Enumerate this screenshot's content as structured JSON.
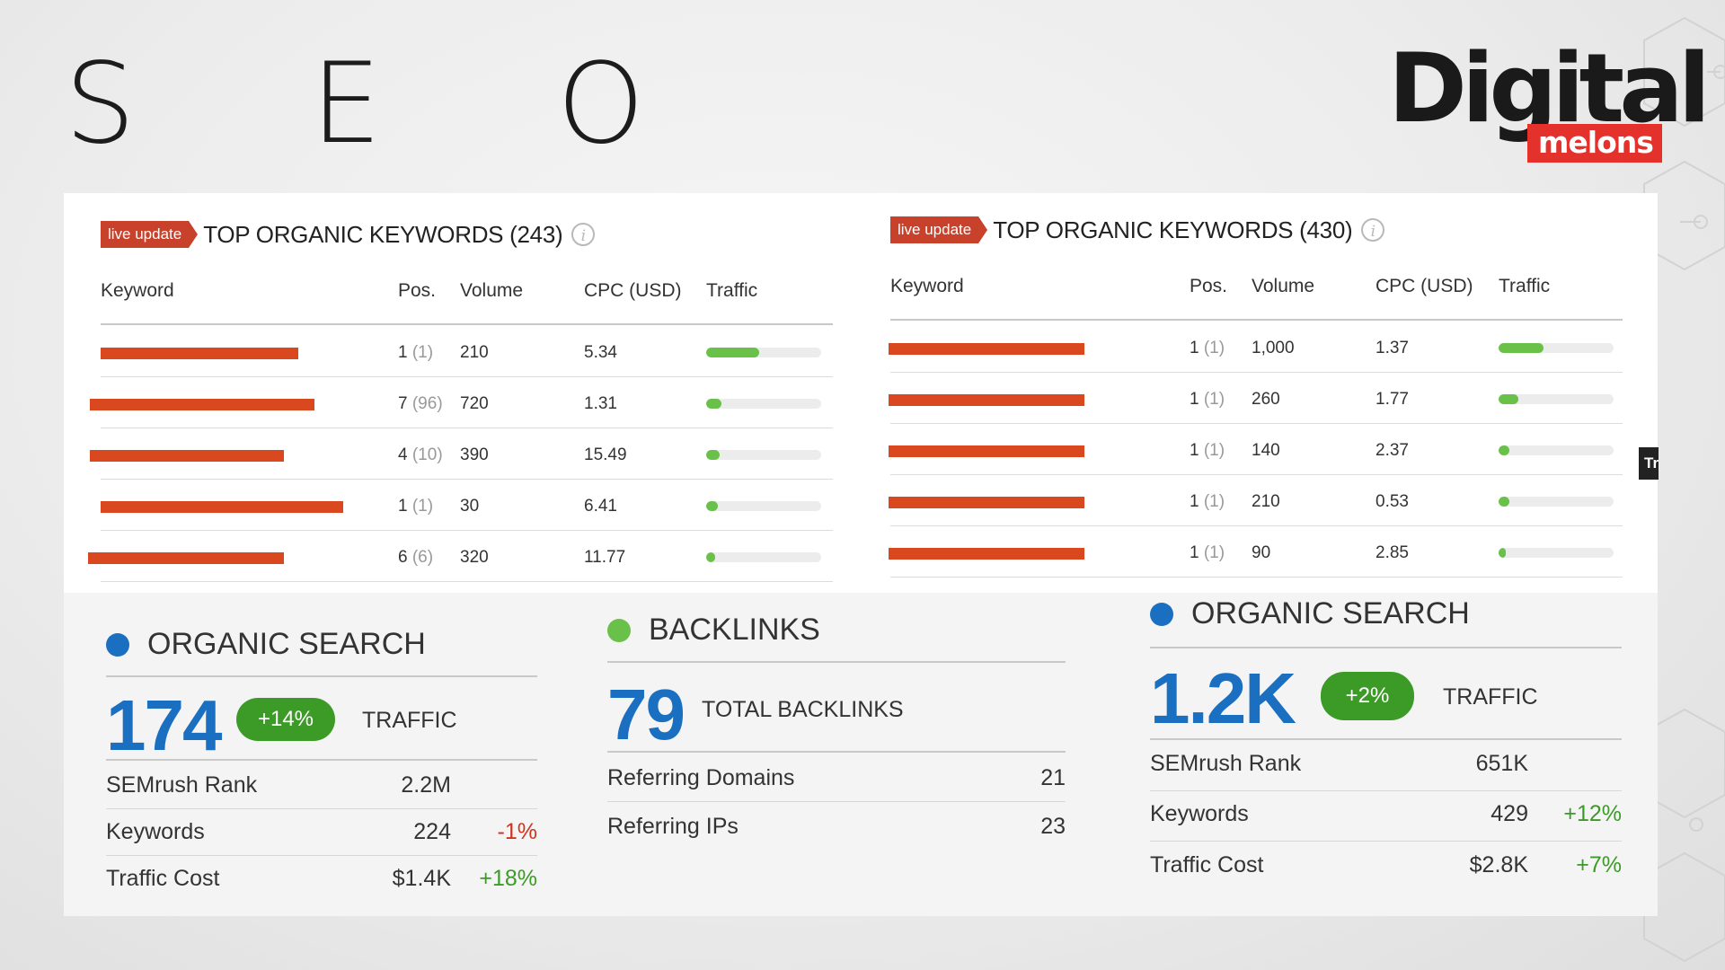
{
  "page_title": "S E O",
  "logo": {
    "main": "Digital",
    "sub": "melons"
  },
  "left_keywords": {
    "badge": "live update",
    "title": "TOP ORGANIC KEYWORDS (243)",
    "info_icon": "info-icon",
    "columns": {
      "keyword": "Keyword",
      "pos": "Pos.",
      "volume": "Volume",
      "cpc": "CPC (USD)",
      "traffic": "Traffic"
    },
    "rows": [
      {
        "pos": "1",
        "prev": "(1)",
        "volume": "210",
        "cpc": "5.34",
        "traffic_share": 0.46
      },
      {
        "pos": "7",
        "prev": "(96)",
        "volume": "720",
        "cpc": "1.31",
        "traffic_share": 0.13
      },
      {
        "pos": "4",
        "prev": "(10)",
        "volume": "390",
        "cpc": "15.49",
        "traffic_share": 0.12
      },
      {
        "pos": "1",
        "prev": "(1)",
        "volume": "30",
        "cpc": "6.41",
        "traffic_share": 0.1
      },
      {
        "pos": "6",
        "prev": "(6)",
        "volume": "320",
        "cpc": "11.77",
        "traffic_share": 0.08
      }
    ]
  },
  "right_keywords": {
    "badge": "live update",
    "title": "TOP ORGANIC KEYWORDS (430)",
    "info_icon": "info-icon",
    "columns": {
      "keyword": "Keyword",
      "pos": "Pos.",
      "volume": "Volume",
      "cpc": "CPC (USD)",
      "traffic": "Traffic"
    },
    "rows": [
      {
        "pos": "1",
        "prev": "(1)",
        "volume": "1,000",
        "cpc": "1.37",
        "traffic_share": 0.39
      },
      {
        "pos": "1",
        "prev": "(1)",
        "volume": "260",
        "cpc": "1.77",
        "traffic_share": 0.17
      },
      {
        "pos": "1",
        "prev": "(1)",
        "volume": "140",
        "cpc": "2.37",
        "traffic_share": 0.09
      },
      {
        "pos": "1",
        "prev": "(1)",
        "volume": "210",
        "cpc": "0.53",
        "traffic_share": 0.09
      },
      {
        "pos": "1",
        "prev": "(1)",
        "volume": "90",
        "cpc": "2.85",
        "traffic_share": 0.06
      }
    ]
  },
  "organic_left": {
    "title": "ORGANIC SEARCH",
    "dot_color": "#1b6fc0",
    "value": "174",
    "change": "+14%",
    "label": "TRAFFIC",
    "rows": [
      {
        "label": "SEMrush Rank",
        "value": "2.2M",
        "change": ""
      },
      {
        "label": "Keywords",
        "value": "224",
        "change": "-1%"
      },
      {
        "label": "Traffic Cost",
        "value": "$1.4K",
        "change": "+18%"
      }
    ]
  },
  "backlinks": {
    "title": "BACKLINKS",
    "dot_color": "#6ac14a",
    "value": "79",
    "label": "TOTAL BACKLINKS",
    "rows": [
      {
        "label": "Referring Domains",
        "value": "21"
      },
      {
        "label": "Referring IPs",
        "value": "23"
      }
    ]
  },
  "organic_right": {
    "title": "ORGANIC SEARCH",
    "dot_color": "#1b6fc0",
    "value": "1.2K",
    "change": "+2%",
    "label": "TRAFFIC",
    "rows": [
      {
        "label": "SEMrush Rank",
        "value": "651K",
        "change": ""
      },
      {
        "label": "Keywords",
        "value": "429",
        "change": "+12%"
      },
      {
        "label": "Traffic Cost",
        "value": "$2.8K",
        "change": "+7%"
      }
    ]
  },
  "tooltip_stub": "Tr",
  "colors": {
    "accent_blue": "#1b6fc0",
    "positive": "#3c9b27",
    "negative": "#d0341e",
    "badge_red": "#c8412b",
    "brand_red": "#e4312b",
    "traffic_bar": "#6ac14a"
  }
}
